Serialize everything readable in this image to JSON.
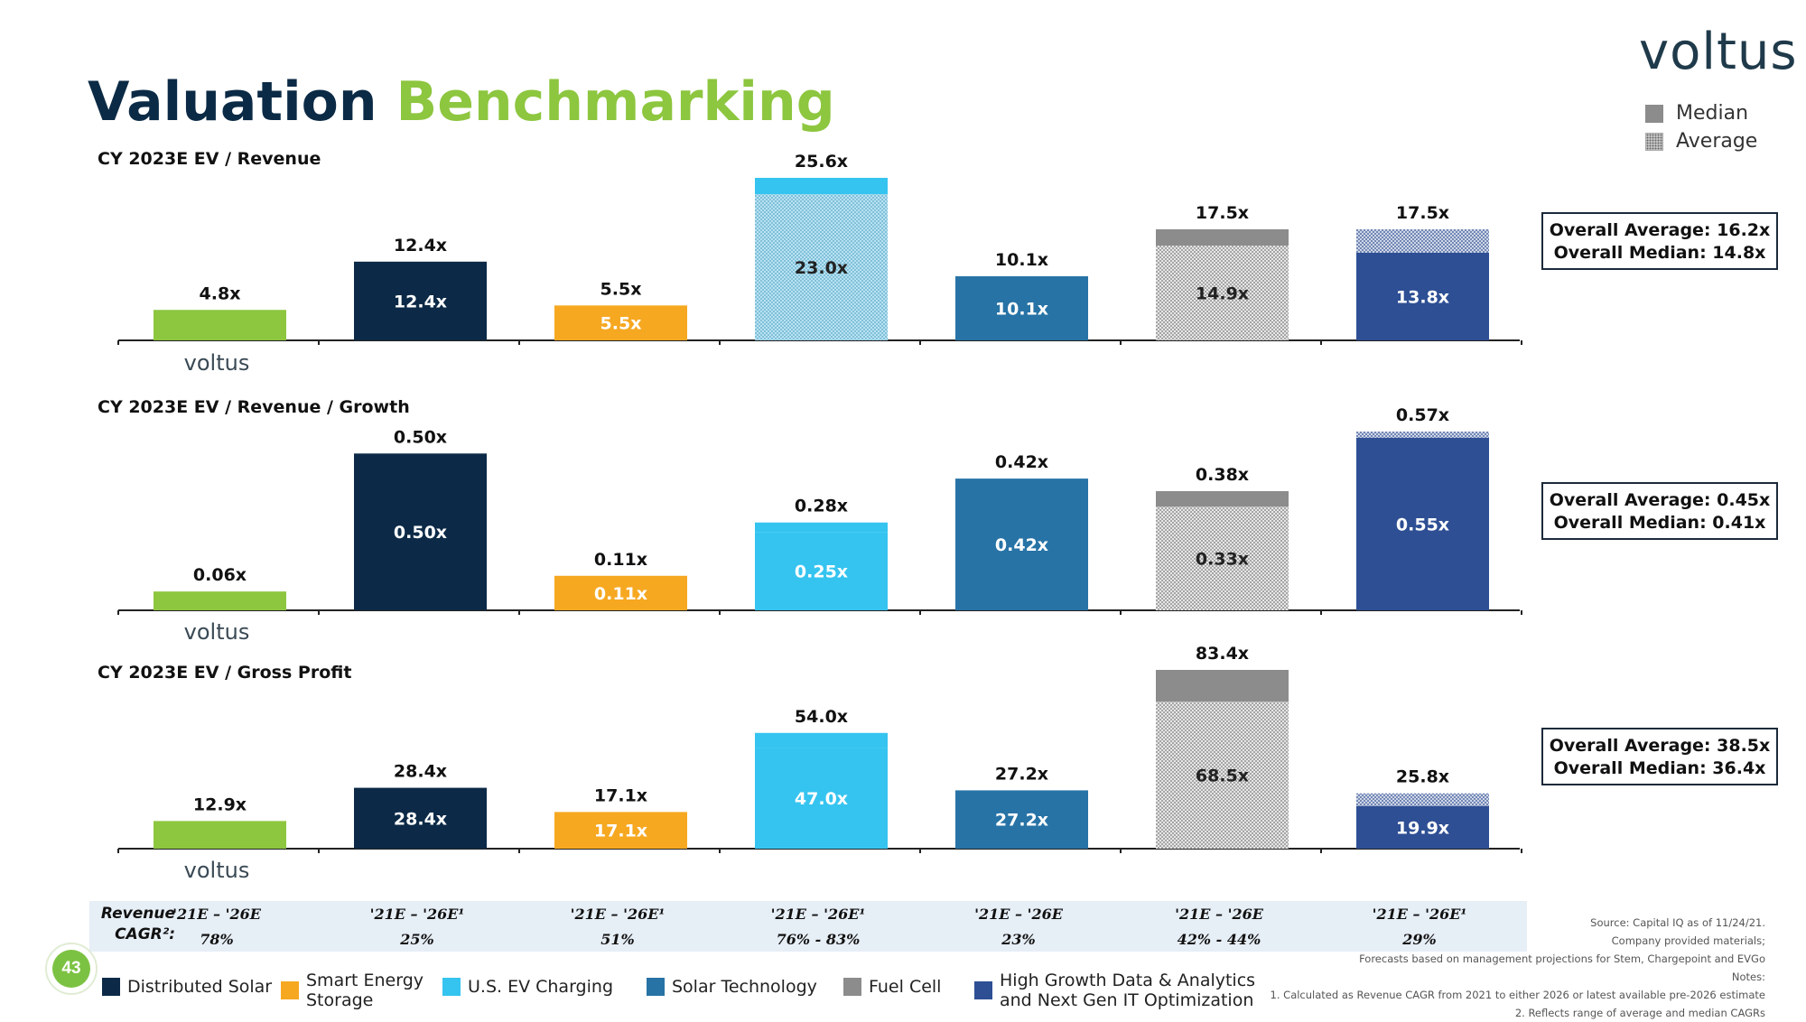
{
  "brand": {
    "logo": "voltus"
  },
  "title": {
    "part1": "Valuation",
    "part2": "Benchmarking"
  },
  "colors": {
    "title_dark": "#0b2a45",
    "title_green": "#8dc63f",
    "distributed_solar": "#8dc63f",
    "smart_energy_storage": "#f6a821",
    "us_ev_charging": "#35c4f0",
    "solar_technology": "#2773a6",
    "fuel_cell": "#8c8c8c",
    "high_growth": "#2e4f94",
    "dark_navy": "#0c2a47"
  },
  "legend_top": {
    "median": "Median",
    "average": "Average"
  },
  "category_colors": [
    "#8dc63f",
    "#0c2a47",
    "#f6a821",
    "#35c4f0",
    "#2773a6",
    "#8c8c8c",
    "#2e4f94"
  ],
  "chart_data": [
    {
      "type": "bar",
      "title": "CY 2023E EV / Revenue",
      "unit": "x",
      "scale_max": 25.6,
      "median": [
        4.8,
        12.4,
        5.5,
        23.0,
        10.1,
        14.9,
        13.8
      ],
      "average": [
        4.8,
        12.4,
        5.5,
        25.6,
        10.1,
        17.5,
        17.5
      ],
      "median_labels": [
        "",
        "12.4x",
        "5.5x",
        "23.0x",
        "10.1x",
        "14.9x",
        "13.8x"
      ],
      "top_labels": [
        "4.8x",
        "12.4x",
        "5.5x",
        "25.6x",
        "10.1x",
        "17.5x",
        "17.5x"
      ],
      "overall": {
        "average": "Overall Average: 16.2x",
        "median": "Overall Median: 14.8x"
      }
    },
    {
      "type": "bar",
      "title": "CY 2023E EV / Revenue / Growth",
      "unit": "x",
      "scale_max": 0.57,
      "median": [
        0.06,
        0.5,
        0.11,
        0.25,
        0.42,
        0.33,
        0.55
      ],
      "average": [
        0.06,
        0.5,
        0.11,
        0.28,
        0.42,
        0.38,
        0.57
      ],
      "median_labels": [
        "",
        "0.50x",
        "0.11x",
        "0.25x",
        "0.42x",
        "0.33x",
        "0.55x"
      ],
      "top_labels": [
        "0.06x",
        "0.50x",
        "0.11x",
        "0.28x",
        "0.42x",
        "0.38x",
        "0.57x"
      ],
      "overall": {
        "average": "Overall Average: 0.45x",
        "median": "Overall Median: 0.41x"
      }
    },
    {
      "type": "bar",
      "title": "CY 2023E EV / Gross Profit",
      "unit": "x",
      "scale_max": 83.4,
      "median": [
        12.9,
        28.4,
        17.1,
        47.0,
        27.2,
        68.5,
        19.9
      ],
      "average": [
        12.9,
        28.4,
        17.1,
        54.0,
        27.2,
        83.4,
        25.8
      ],
      "median_labels": [
        "",
        "28.4x",
        "17.1x",
        "47.0x",
        "27.2x",
        "68.5x",
        "19.9x"
      ],
      "top_labels": [
        "12.9x",
        "28.4x",
        "17.1x",
        "54.0x",
        "27.2x",
        "83.4x",
        "25.8x"
      ],
      "overall": {
        "average": "Overall Average: 38.5x",
        "median": "Overall Median: 36.4x"
      }
    }
  ],
  "cagr": {
    "title_line1": "Revenue",
    "title_line2": "CAGR²:",
    "periods": [
      "'21E – '26E",
      "'21E – '26E¹",
      "'21E – '26E¹",
      "'21E – '26E¹",
      "'21E – '26E",
      "'21E – '26E",
      "'21E – '26E¹"
    ],
    "values": [
      "78%",
      "25%",
      "51%",
      "76% - 83%",
      "23%",
      "42% - 44%",
      "29%"
    ]
  },
  "page_number": "43",
  "legend_bottom": [
    {
      "line1": "Distributed Solar",
      "line2": "",
      "color": "#0c2a47"
    },
    {
      "line1": "Smart Energy",
      "line2": "Storage",
      "color": "#f6a821"
    },
    {
      "line1": "U.S. EV Charging",
      "line2": "",
      "color": "#35c4f0"
    },
    {
      "line1": "Solar Technology",
      "line2": "",
      "color": "#2773a6"
    },
    {
      "line1": "Fuel Cell",
      "line2": "",
      "color": "#8c8c8c"
    },
    {
      "line1": "High Growth Data & Analytics",
      "line2": "and Next Gen IT Optimization",
      "color": "#2e4f94"
    }
  ],
  "notes": {
    "source": "Source: Capital IQ as of 11/24/21.",
    "company": "Company provided materials;",
    "forecasts": "Forecasts based on management projections for Stem, Chargepoint and EVGo",
    "notes_label": "Notes:",
    "note1": "1. Calculated as Revenue CAGR from 2021 to either 2026 or latest available pre-2026 estimate",
    "note2": "2.  Reflects range of average and median CAGRs"
  }
}
